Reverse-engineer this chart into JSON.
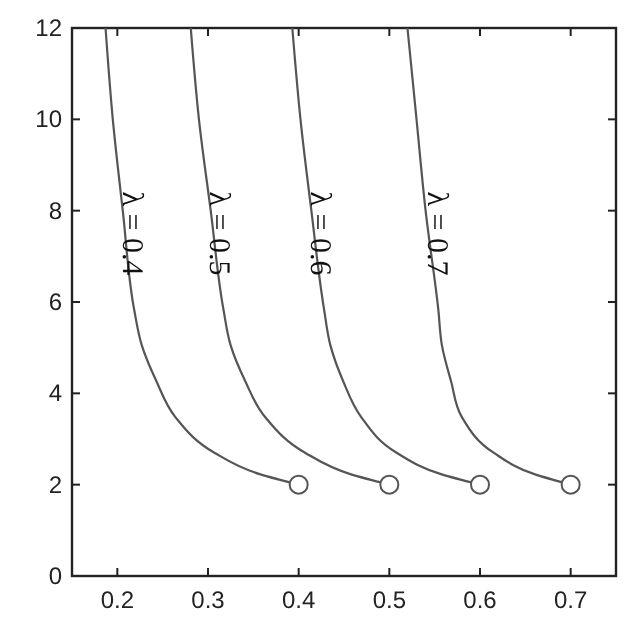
{
  "chart_data": {
    "type": "line",
    "xlim": [
      0.15,
      0.75
    ],
    "ylim": [
      0,
      12
    ],
    "xticks": [
      0.2,
      0.3,
      0.4,
      0.5,
      0.6,
      0.7
    ],
    "yticks": [
      0,
      2,
      4,
      6,
      8,
      10,
      12
    ],
    "grid": false,
    "marker": "none",
    "line_style": "solid",
    "series": [
      {
        "color": "#555555",
        "x": [
          0.4,
          0.357,
          0.307,
          0.264,
          0.243,
          0.227,
          0.2185,
          0.206,
          0.195,
          0.187
        ],
        "values": [
          2,
          2.23,
          2.7,
          3.48,
          4.27,
          5.05,
          5.84,
          8,
          10,
          12
        ]
      },
      {
        "color": "#555555",
        "x": [
          0.5,
          0.457,
          0.407,
          0.363,
          0.341,
          0.325,
          0.317,
          0.303,
          0.29,
          0.281
        ],
        "values": [
          2,
          2.23,
          2.7,
          3.48,
          4.27,
          5.05,
          5.84,
          8,
          10,
          12
        ]
      },
      {
        "color": "#555555",
        "x": [
          0.6,
          0.557,
          0.508,
          0.469,
          0.449,
          0.435,
          0.428,
          0.414,
          0.402,
          0.393
        ],
        "values": [
          2,
          2.23,
          2.7,
          3.48,
          4.27,
          5.05,
          5.84,
          8,
          10,
          12
        ]
      },
      {
        "color": "#555555",
        "x": [
          0.7,
          0.66,
          0.615,
          0.58,
          0.568,
          0.558,
          0.554,
          0.54,
          0.53,
          0.52
        ],
        "values": [
          2,
          2.23,
          2.7,
          3.48,
          4.27,
          5.05,
          5.84,
          8,
          10,
          12
        ]
      },
      {
        "type": "scatter",
        "marker": "circle",
        "color": "#555555",
        "x": [
          0.4,
          0.5,
          0.6,
          0.7
        ],
        "values": [
          2,
          2,
          2,
          2
        ]
      }
    ],
    "annotations": [
      {
        "text": "λ = 0.4",
        "x": 0.215,
        "y": 7.5
      },
      {
        "text": "λ = 0.5",
        "x": 0.311,
        "y": 7.5
      },
      {
        "text": "λ = 0.6",
        "x": 0.422,
        "y": 7.5
      },
      {
        "text": "λ = 0.7",
        "x": 0.552,
        "y": 7.5
      }
    ]
  }
}
